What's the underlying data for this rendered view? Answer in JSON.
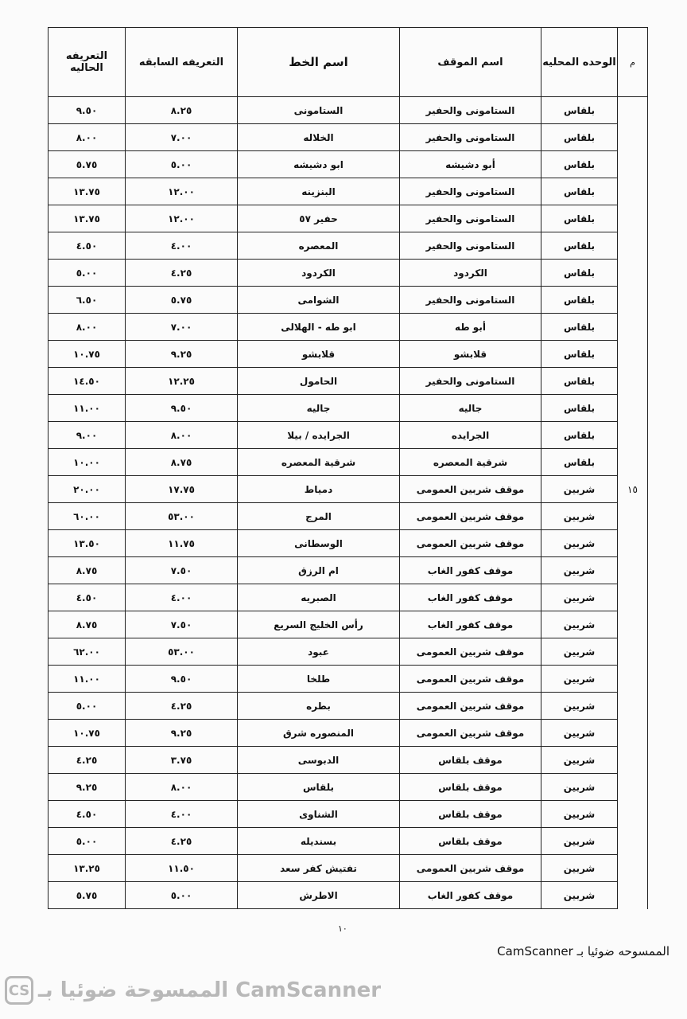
{
  "headers": {
    "m": "م",
    "unit": "الوحده المحليه",
    "station": "اسم الموقف",
    "line": "اسم الخط",
    "previous": "التعريفه السابقه",
    "current": "التعريفه الحاليه"
  },
  "group_number": "١٥",
  "rows": [
    {
      "unit": "بلقاس",
      "station": "الستامونى والحفير",
      "line": "الستامونى",
      "previous": "٨.٢٥",
      "current": "٩.٥٠"
    },
    {
      "unit": "بلقاس",
      "station": "الستامونى والحفير",
      "line": "الخلاله",
      "previous": "٧.٠٠",
      "current": "٨.٠٠"
    },
    {
      "unit": "بلقاس",
      "station": "أبو دشيشه",
      "line": "ابو دشيشه",
      "previous": "٥.٠٠",
      "current": "٥.٧٥"
    },
    {
      "unit": "بلقاس",
      "station": "الستامونى والحفير",
      "line": "البنزينه",
      "previous": "١٢.٠٠",
      "current": "١٣.٧٥"
    },
    {
      "unit": "بلقاس",
      "station": "الستامونى والحفير",
      "line": "حفير ٥٧",
      "previous": "١٢.٠٠",
      "current": "١٣.٧٥"
    },
    {
      "unit": "بلقاس",
      "station": "الستامونى والحفير",
      "line": "المعصره",
      "previous": "٤.٠٠",
      "current": "٤.٥٠"
    },
    {
      "unit": "بلقاس",
      "station": "الكردود",
      "line": "الكردود",
      "previous": "٤.٢٥",
      "current": "٥.٠٠"
    },
    {
      "unit": "بلقاس",
      "station": "الستامونى والحفير",
      "line": "الشوامى",
      "previous": "٥.٧٥",
      "current": "٦.٥٠"
    },
    {
      "unit": "بلقاس",
      "station": "أبو طه",
      "line": "ابو طه - الهلالى",
      "previous": "٧.٠٠",
      "current": "٨.٠٠"
    },
    {
      "unit": "بلقاس",
      "station": "قلابشو",
      "line": "قلابشو",
      "previous": "٩.٢٥",
      "current": "١٠.٧٥"
    },
    {
      "unit": "بلقاس",
      "station": "الستامونى والحفير",
      "line": "الحامول",
      "previous": "١٢.٢٥",
      "current": "١٤.٥٠"
    },
    {
      "unit": "بلقاس",
      "station": "جاليه",
      "line": "جاليه",
      "previous": "٩.٥٠",
      "current": "١١.٠٠"
    },
    {
      "unit": "بلقاس",
      "station": "الجرايده",
      "line": "الجرايده / بيلا",
      "previous": "٨.٠٠",
      "current": "٩.٠٠"
    },
    {
      "unit": "بلقاس",
      "station": "شرقية المعصره",
      "line": "شرقية المعصره",
      "previous": "٨.٧٥",
      "current": "١٠.٠٠"
    },
    {
      "unit": "شربين",
      "station": "موقف شربين العمومى",
      "line": "دمياط",
      "previous": "١٧.٧٥",
      "current": "٢٠.٠٠"
    },
    {
      "unit": "شربين",
      "station": "موقف شربين العمومى",
      "line": "المرج",
      "previous": "٥٣.٠٠",
      "current": "٦٠.٠٠"
    },
    {
      "unit": "شربين",
      "station": "موقف شربين العمومى",
      "line": "الوسطانى",
      "previous": "١١.٧٥",
      "current": "١٣.٥٠"
    },
    {
      "unit": "شربين",
      "station": "موقف كفور الغاب",
      "line": "ام الرزق",
      "previous": "٧.٥٠",
      "current": "٨.٧٥"
    },
    {
      "unit": "شربين",
      "station": "موقف كفور الغاب",
      "line": "الصبريه",
      "previous": "٤.٠٠",
      "current": "٤.٥٠"
    },
    {
      "unit": "شربين",
      "station": "موقف كفور الغاب",
      "line": "رأس الخليج السريع",
      "previous": "٧.٥٠",
      "current": "٨.٧٥"
    },
    {
      "unit": "شربين",
      "station": "موقف شربين العمومى",
      "line": "عبود",
      "previous": "٥٣.٠٠",
      "current": "٦٢.٠٠"
    },
    {
      "unit": "شربين",
      "station": "موقف شربين العمومى",
      "line": "طلخا",
      "previous": "٩.٥٠",
      "current": "١١.٠٠"
    },
    {
      "unit": "شربين",
      "station": "موقف شربين العمومى",
      "line": "بطره",
      "previous": "٤.٢٥",
      "current": "٥.٠٠"
    },
    {
      "unit": "شربين",
      "station": "موقف شربين العمومى",
      "line": "المنصوره شرق",
      "previous": "٩.٢٥",
      "current": "١٠.٧٥"
    },
    {
      "unit": "شربين",
      "station": "موقف بلقاس",
      "line": "الدبوسى",
      "previous": "٣.٧٥",
      "current": "٤.٢٥"
    },
    {
      "unit": "شربين",
      "station": "موقف بلقاس",
      "line": "بلقاس",
      "previous": "٨.٠٠",
      "current": "٩.٢٥"
    },
    {
      "unit": "شربين",
      "station": "موقف بلقاس",
      "line": "الشناوى",
      "previous": "٤.٠٠",
      "current": "٤.٥٠"
    },
    {
      "unit": "شربين",
      "station": "موقف بلقاس",
      "line": "بسنديله",
      "previous": "٤.٢٥",
      "current": "٥.٠٠"
    },
    {
      "unit": "شربين",
      "station": "موقف شربين العمومى",
      "line": "تفتيش كفر سعد",
      "previous": "١١.٥٠",
      "current": "١٣.٢٥"
    },
    {
      "unit": "شربين",
      "station": "موقف كفور الغاب",
      "line": "الاطرش",
      "previous": "٥.٠٠",
      "current": "٥.٧٥"
    }
  ],
  "page_number": "١٠",
  "scan_stamp": "الممسوحه ضوئيا بـ CamScanner",
  "watermark": {
    "text": "الممسوحة ضوئيا بـ CamScanner",
    "logo": "CS"
  }
}
